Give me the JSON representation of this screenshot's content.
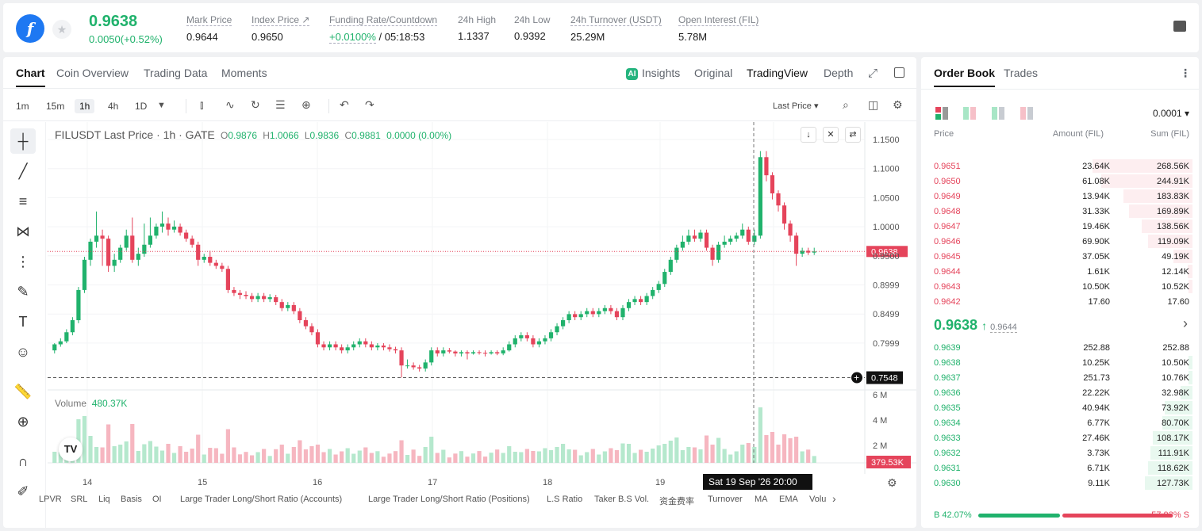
{
  "header": {
    "coin_glyph": "f",
    "last_price": "0.9638",
    "change": "0.0050(+0.52%)",
    "stats": [
      {
        "label": "Mark Price",
        "value": "0.9644"
      },
      {
        "label": "Index Price ↗",
        "value": "0.9650"
      },
      {
        "label": "Funding Rate/Countdown",
        "value_rate": "+0.0100%",
        "value_time": "/ 05:18:53"
      },
      {
        "label": "24h High",
        "value": "1.1337"
      },
      {
        "label": "24h Low",
        "value": "0.9392"
      },
      {
        "label": "24h Turnover (USDT)",
        "value": "25.29M"
      },
      {
        "label": "Open Interest (FIL)",
        "value": "5.78M"
      }
    ]
  },
  "chart_tabs": {
    "chart": "Chart",
    "overview": "Coin Overview",
    "trading_data": "Trading Data",
    "moments": "Moments",
    "insights": "Insights",
    "ai_badge": "AI",
    "original": "Original",
    "tradingview": "TradingView",
    "depth": "Depth"
  },
  "toolbar": {
    "intervals": [
      "1m",
      "15m",
      "1h",
      "4h",
      "1D"
    ],
    "price_type": "Last Price ▾"
  },
  "legend": {
    "symbol": "FILUSDT Last Price · 1h · GATE",
    "o": "0.9876",
    "h": "1.0066",
    "l": "0.9836",
    "c": "0.9881",
    "chg": "0.0000 (0.00%)",
    "volume_label": "Volume",
    "volume_value": "480.37K"
  },
  "indicators": [
    "LPVR",
    "SRL",
    "Liq",
    "Basis",
    "OI",
    "Large Trader Long/Short Ratio (Accounts)",
    "Large Trader Long/Short Ratio (Positions)",
    "L.S Ratio",
    "Taker B.S Vol.",
    "资金费率",
    "Turnover",
    "MA",
    "EMA",
    "Volu"
  ],
  "chart_data": {
    "type": "candlestick",
    "symbol": "FILUSDT",
    "interval": "1h",
    "x_labels": [
      "14",
      "15",
      "16",
      "17",
      "18",
      "19"
    ],
    "price_axis": [
      "1.1500",
      "1.1000",
      "1.0500",
      "1.0000",
      "0.9500",
      "0.8999",
      "0.8499",
      "0.7999"
    ],
    "volume_axis": [
      "6 M",
      "4 M",
      "2 M"
    ],
    "ylim": [
      0.745,
      1.165
    ],
    "current_price": "0.9638",
    "crosshair_price": "0.7548",
    "volume_tag": "379.53K",
    "crosshair_time": "Sat 19 Sep '26   20:00",
    "candles": [
      [
        0.8,
        0.81,
        0.795,
        0.812
      ],
      [
        0.81,
        0.815,
        0.806,
        0.82
      ],
      [
        0.815,
        0.83,
        0.812,
        0.835
      ],
      [
        0.83,
        0.85,
        0.825,
        0.855
      ],
      [
        0.85,
        0.9,
        0.845,
        0.905
      ],
      [
        0.9,
        0.95,
        0.895,
        0.955
      ],
      [
        0.95,
        0.98,
        0.94,
        0.985
      ],
      [
        0.98,
        0.99,
        0.97,
        1.03
      ],
      [
        0.99,
        0.985,
        0.94,
        1.0
      ],
      [
        0.985,
        0.94,
        0.93,
        0.99
      ],
      [
        0.94,
        0.95,
        0.93,
        0.96
      ],
      [
        0.95,
        0.97,
        0.945,
        0.975
      ],
      [
        0.97,
        0.99,
        0.965,
        1.0
      ],
      [
        0.99,
        0.95,
        0.945,
        1.02
      ],
      [
        0.95,
        0.96,
        0.94,
        0.97
      ],
      [
        0.96,
        0.975,
        0.955,
        1.01
      ],
      [
        0.975,
        0.99,
        0.97,
        1.02
      ],
      [
        0.99,
        1.005,
        0.985,
        1.01
      ],
      [
        1.005,
        1.01,
        0.995,
        1.03
      ],
      [
        1.01,
        1.0,
        0.99,
        1.02
      ],
      [
        1.0,
        1.005,
        0.995,
        1.015
      ],
      [
        1.005,
        0.995,
        0.99,
        1.01
      ],
      [
        0.995,
        0.985,
        0.98,
        1.0
      ],
      [
        0.985,
        0.975,
        0.97,
        0.99
      ],
      [
        0.975,
        0.95,
        0.94,
        0.98
      ],
      [
        0.95,
        0.955,
        0.945,
        0.96
      ],
      [
        0.955,
        0.945,
        0.94,
        0.965
      ],
      [
        0.945,
        0.94,
        0.935,
        0.95
      ],
      [
        0.94,
        0.935,
        0.93,
        0.945
      ],
      [
        0.935,
        0.9,
        0.895,
        0.94
      ],
      [
        0.9,
        0.895,
        0.89,
        0.905
      ],
      [
        0.895,
        0.892,
        0.885,
        0.9
      ],
      [
        0.892,
        0.89,
        0.885,
        0.898
      ],
      [
        0.89,
        0.885,
        0.88,
        0.895
      ],
      [
        0.885,
        0.89,
        0.88,
        0.895
      ],
      [
        0.89,
        0.885,
        0.88,
        0.895
      ],
      [
        0.885,
        0.888,
        0.88,
        0.893
      ],
      [
        0.888,
        0.88,
        0.875,
        0.892
      ],
      [
        0.88,
        0.87,
        0.865,
        0.885
      ],
      [
        0.87,
        0.875,
        0.865,
        0.88
      ],
      [
        0.875,
        0.865,
        0.86,
        0.88
      ],
      [
        0.865,
        0.85,
        0.845,
        0.87
      ],
      [
        0.85,
        0.84,
        0.835,
        0.855
      ],
      [
        0.84,
        0.83,
        0.825,
        0.845
      ],
      [
        0.83,
        0.81,
        0.805,
        0.835
      ],
      [
        0.81,
        0.805,
        0.8,
        0.815
      ],
      [
        0.805,
        0.81,
        0.8,
        0.815
      ],
      [
        0.81,
        0.805,
        0.8,
        0.815
      ],
      [
        0.805,
        0.8,
        0.795,
        0.81
      ],
      [
        0.8,
        0.805,
        0.795,
        0.81
      ],
      [
        0.805,
        0.81,
        0.8,
        0.815
      ],
      [
        0.81,
        0.815,
        0.805,
        0.82
      ],
      [
        0.815,
        0.81,
        0.805,
        0.82
      ],
      [
        0.81,
        0.805,
        0.8,
        0.815
      ],
      [
        0.805,
        0.808,
        0.8,
        0.812
      ],
      [
        0.808,
        0.805,
        0.8,
        0.812
      ],
      [
        0.805,
        0.802,
        0.798,
        0.81
      ],
      [
        0.802,
        0.8,
        0.795,
        0.806
      ],
      [
        0.8,
        0.775,
        0.755,
        0.805
      ],
      [
        0.775,
        0.775,
        0.77,
        0.785
      ],
      [
        0.775,
        0.772,
        0.768,
        0.78
      ],
      [
        0.772,
        0.77,
        0.765,
        0.776
      ],
      [
        0.77,
        0.78,
        0.765,
        0.785
      ],
      [
        0.78,
        0.8,
        0.775,
        0.805
      ],
      [
        0.8,
        0.795,
        0.79,
        0.805
      ],
      [
        0.795,
        0.8,
        0.79,
        0.805
      ],
      [
        0.8,
        0.798,
        0.795,
        0.804
      ],
      [
        0.798,
        0.795,
        0.79,
        0.8
      ],
      [
        0.795,
        0.797,
        0.79,
        0.8
      ],
      [
        0.797,
        0.795,
        0.785,
        0.8
      ],
      [
        0.795,
        0.797,
        0.793,
        0.8
      ],
      [
        0.797,
        0.796,
        0.793,
        0.8
      ],
      [
        0.796,
        0.795,
        0.79,
        0.8
      ],
      [
        0.795,
        0.797,
        0.793,
        0.8
      ],
      [
        0.797,
        0.795,
        0.792,
        0.8
      ],
      [
        0.795,
        0.8,
        0.792,
        0.805
      ],
      [
        0.8,
        0.81,
        0.798,
        0.815
      ],
      [
        0.81,
        0.82,
        0.805,
        0.825
      ],
      [
        0.82,
        0.825,
        0.815,
        0.83
      ],
      [
        0.825,
        0.82,
        0.815,
        0.83
      ],
      [
        0.82,
        0.81,
        0.805,
        0.825
      ],
      [
        0.81,
        0.815,
        0.805,
        0.82
      ],
      [
        0.815,
        0.82,
        0.81,
        0.825
      ],
      [
        0.82,
        0.83,
        0.815,
        0.835
      ],
      [
        0.83,
        0.84,
        0.825,
        0.845
      ],
      [
        0.84,
        0.85,
        0.835,
        0.855
      ],
      [
        0.85,
        0.86,
        0.845,
        0.865
      ],
      [
        0.86,
        0.855,
        0.85,
        0.865
      ],
      [
        0.855,
        0.86,
        0.85,
        0.865
      ],
      [
        0.86,
        0.865,
        0.855,
        0.87
      ],
      [
        0.865,
        0.86,
        0.855,
        0.87
      ],
      [
        0.86,
        0.865,
        0.855,
        0.87
      ],
      [
        0.865,
        0.87,
        0.86,
        0.875
      ],
      [
        0.87,
        0.865,
        0.86,
        0.875
      ],
      [
        0.865,
        0.855,
        0.85,
        0.87
      ],
      [
        0.855,
        0.87,
        0.85,
        0.875
      ],
      [
        0.87,
        0.88,
        0.865,
        0.885
      ],
      [
        0.88,
        0.885,
        0.875,
        0.89
      ],
      [
        0.885,
        0.88,
        0.875,
        0.89
      ],
      [
        0.88,
        0.89,
        0.875,
        0.895
      ],
      [
        0.89,
        0.9,
        0.885,
        0.905
      ],
      [
        0.9,
        0.91,
        0.895,
        0.915
      ],
      [
        0.91,
        0.93,
        0.905,
        0.935
      ],
      [
        0.93,
        0.95,
        0.925,
        0.955
      ],
      [
        0.95,
        0.97,
        0.945,
        0.975
      ],
      [
        0.97,
        0.98,
        0.965,
        0.99
      ],
      [
        0.98,
        0.99,
        0.975,
        1.0
      ],
      [
        0.99,
        0.985,
        0.98,
        1.0
      ],
      [
        0.985,
        0.995,
        0.98,
        1.0
      ],
      [
        0.995,
        0.97,
        0.965,
        1.0
      ],
      [
        0.97,
        0.95,
        0.94,
        0.975
      ],
      [
        0.95,
        0.975,
        0.945,
        0.98
      ],
      [
        0.975,
        0.98,
        0.97,
        0.99
      ],
      [
        0.98,
        0.985,
        0.975,
        0.99
      ],
      [
        0.985,
        0.99,
        0.98,
        0.995
      ],
      [
        0.99,
        1.0,
        0.985,
        1.01
      ],
      [
        1.0,
        0.98,
        0.975,
        1.005
      ],
      [
        0.98,
        0.99,
        0.975,
        1.0
      ],
      [
        0.99,
        1.12,
        0.985,
        1.13
      ],
      [
        1.12,
        1.09,
        1.08,
        1.13
      ],
      [
        1.09,
        1.06,
        1.05,
        1.095
      ],
      [
        1.06,
        1.04,
        1.03,
        1.065
      ],
      [
        1.04,
        1.01,
        1.0,
        1.045
      ],
      [
        1.01,
        0.99,
        0.98,
        1.015
      ],
      [
        0.99,
        0.96,
        0.94,
        0.995
      ],
      [
        0.96,
        0.965,
        0.955,
        0.97
      ],
      [
        0.965,
        0.962,
        0.958,
        0.97
      ],
      [
        0.962,
        0.9638,
        0.958,
        0.97
      ]
    ]
  },
  "orderbook": {
    "tab": "Order Book",
    "trades_tab": "Trades",
    "precision": "0.0001 ▾",
    "col_price": "Price",
    "col_amount": "Amount (FIL)",
    "col_sum": "Sum (FIL)",
    "asks": [
      {
        "price": "0.9651",
        "amount": "23.64K",
        "sum": "268.56K",
        "depth": 0.9
      },
      {
        "price": "0.9650",
        "amount": "61.08K",
        "sum": "244.91K",
        "depth": 0.82
      },
      {
        "price": "0.9649",
        "amount": "13.94K",
        "sum": "183.83K",
        "depth": 0.62
      },
      {
        "price": "0.9648",
        "amount": "31.33K",
        "sum": "169.89K",
        "depth": 0.57
      },
      {
        "price": "0.9647",
        "amount": "19.46K",
        "sum": "138.56K",
        "depth": 0.46
      },
      {
        "price": "0.9646",
        "amount": "69.90K",
        "sum": "119.09K",
        "depth": 0.4
      },
      {
        "price": "0.9645",
        "amount": "37.05K",
        "sum": "49.19K",
        "depth": 0.17
      },
      {
        "price": "0.9644",
        "amount": "1.61K",
        "sum": "12.14K",
        "depth": 0.04
      },
      {
        "price": "0.9643",
        "amount": "10.50K",
        "sum": "10.52K",
        "depth": 0.035
      },
      {
        "price": "0.9642",
        "amount": "17.60",
        "sum": "17.60",
        "depth": 0.002
      }
    ],
    "mid_price": "0.9638",
    "mid_arrow": "↑",
    "mark_price": "0.9644",
    "mid_chevron": "›",
    "bids": [
      {
        "price": "0.9639",
        "amount": "252.88",
        "sum": "252.88",
        "depth": 0.002
      },
      {
        "price": "0.9638",
        "amount": "10.25K",
        "sum": "10.50K",
        "depth": 0.035
      },
      {
        "price": "0.9637",
        "amount": "251.73",
        "sum": "10.76K",
        "depth": 0.036
      },
      {
        "price": "0.9636",
        "amount": "22.22K",
        "sum": "32.98K",
        "depth": 0.11
      },
      {
        "price": "0.9635",
        "amount": "40.94K",
        "sum": "73.92K",
        "depth": 0.25
      },
      {
        "price": "0.9634",
        "amount": "6.77K",
        "sum": "80.70K",
        "depth": 0.27
      },
      {
        "price": "0.9633",
        "amount": "27.46K",
        "sum": "108.17K",
        "depth": 0.36
      },
      {
        "price": "0.9632",
        "amount": "3.73K",
        "sum": "111.91K",
        "depth": 0.375
      },
      {
        "price": "0.9631",
        "amount": "6.71K",
        "sum": "118.62K",
        "depth": 0.4
      },
      {
        "price": "0.9630",
        "amount": "9.11K",
        "sum": "127.73K",
        "depth": 0.43
      }
    ],
    "buy_ratio": "B 42.07%",
    "sell_ratio": "57.93% S",
    "buy_frac": 0.4207
  }
}
